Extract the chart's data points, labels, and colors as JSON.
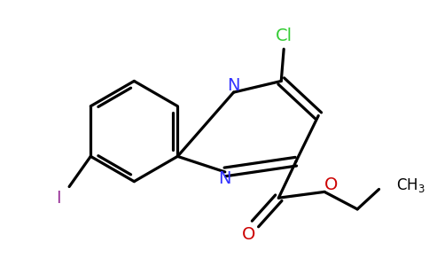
{
  "bg_color": "#ffffff",
  "bond_color": "#000000",
  "bond_width": 2.3,
  "fig_size": [
    4.84,
    3.0
  ],
  "dpi": 100,
  "colors": {
    "N": "#3333ff",
    "Cl": "#33cc33",
    "O": "#cc0000",
    "I": "#993399",
    "C": "#000000"
  }
}
